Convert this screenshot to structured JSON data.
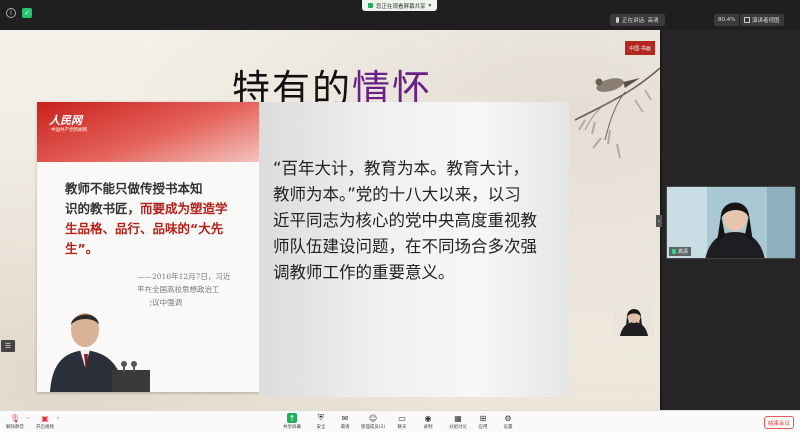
{
  "topbar": {
    "share_label": "您正在观看屏幕共享",
    "speaking_label": "正在讲话: 高清",
    "zoom_label": "80.4%",
    "view_label": "演讲者视图"
  },
  "slide": {
    "title_prefix": "特有的",
    "title_highlight": "情怀",
    "seal_text": "中国·书画",
    "card": {
      "logo": "人民网",
      "logo_sub": "中国共产党新闻网",
      "quote_line1": "教师不能只做传授书本知",
      "quote_line2_a": "识的教书匠，",
      "quote_line2_b": "而要成为塑造学",
      "quote_line3": "生品格、品行、品味的“大先",
      "quote_line4": "生”。",
      "sign_line1": "——2016年12月7日，习近",
      "sign_line2": "平在全国高校思想政治工",
      "sign_line3": "作会议中强调"
    },
    "body_lines": [
      "“百年大计，教育为本。教育大计，",
      "教师为本。”党的十八大以来，以习",
      "近平同志为核心的党中央高度重视教",
      "师队伍建设问题，在不同场合多次强",
      "调教师工作的重要意义。"
    ]
  },
  "video": {
    "name": "高清"
  },
  "toolbar": {
    "items": [
      {
        "label": "解除静音"
      },
      {
        "label": "开启视频"
      },
      {
        "label": "共享屏幕"
      },
      {
        "label": "安全"
      },
      {
        "label": "邀请"
      },
      {
        "label": "管理成员(2)"
      },
      {
        "label": "聊天"
      },
      {
        "label": "录制"
      },
      {
        "label": "分组讨论"
      },
      {
        "label": "应用"
      },
      {
        "label": "设置"
      }
    ],
    "end_label": "结束会议"
  },
  "colors": {
    "accent_green": "#1fae5b",
    "title_highlight": "#6a1f86",
    "card_red": "#c8201c",
    "end_red": "#d33333"
  }
}
